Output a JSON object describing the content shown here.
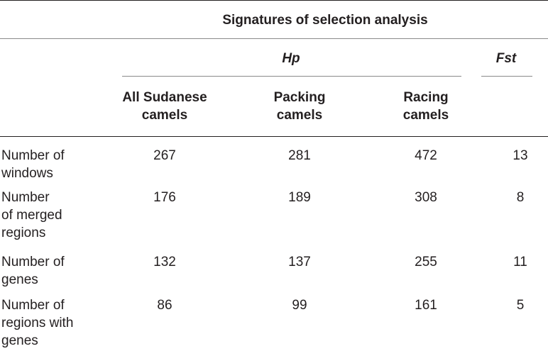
{
  "table": {
    "super_header": "Signatures of selection analysis",
    "group_headers": {
      "hp": "Hp",
      "fst": "Fst"
    },
    "column_headers": [
      {
        "line1": "All Sudanese",
        "line2": "camels"
      },
      {
        "line1": "Packing",
        "line2": "camels"
      },
      {
        "line1": "Racing",
        "line2": "camels"
      }
    ],
    "rows": [
      {
        "label_lines": [
          "Number of",
          "windows"
        ],
        "values": [
          "267",
          "281",
          "472",
          "13"
        ]
      },
      {
        "label_lines": [
          "Number",
          "of merged",
          "regions"
        ],
        "values": [
          "176",
          "189",
          "308",
          "8"
        ]
      },
      {
        "label_lines": [
          "Number of",
          "genes"
        ],
        "values": [
          "132",
          "137",
          "255",
          "11"
        ]
      },
      {
        "label_lines": [
          "Number of",
          "regions with",
          "genes"
        ],
        "values": [
          "86",
          "99",
          "161",
          "5"
        ]
      }
    ]
  }
}
